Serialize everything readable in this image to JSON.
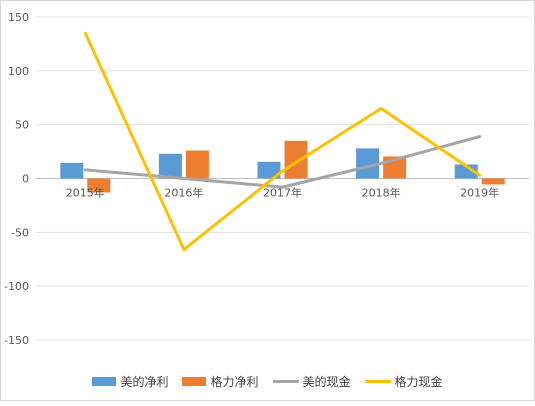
{
  "chart_data": {
    "type": "bar+line",
    "categories": [
      "2015年",
      "2016年",
      "2017年",
      "2018年",
      "2019年"
    ],
    "ylim": [
      -150,
      150
    ],
    "yticks": [
      -150,
      -100,
      -50,
      0,
      50,
      100,
      150
    ],
    "grid": true,
    "legend_position": "bottom",
    "bar_series": [
      {
        "name": "美的净利",
        "color": "#5B9BD5",
        "values": [
          14.5,
          23,
          15.5,
          28,
          13
        ]
      },
      {
        "name": "格力净利",
        "color": "#ED7D31",
        "values": [
          -13,
          26,
          35,
          20.5,
          -5.5
        ]
      }
    ],
    "line_series": [
      {
        "name": "美的现金",
        "color": "#A5A5A5",
        "values": [
          8,
          0,
          -8,
          14,
          39
        ]
      },
      {
        "name": "格力现金",
        "color": "#FFC000",
        "values": [
          135,
          -66,
          7,
          65,
          3
        ]
      }
    ]
  }
}
